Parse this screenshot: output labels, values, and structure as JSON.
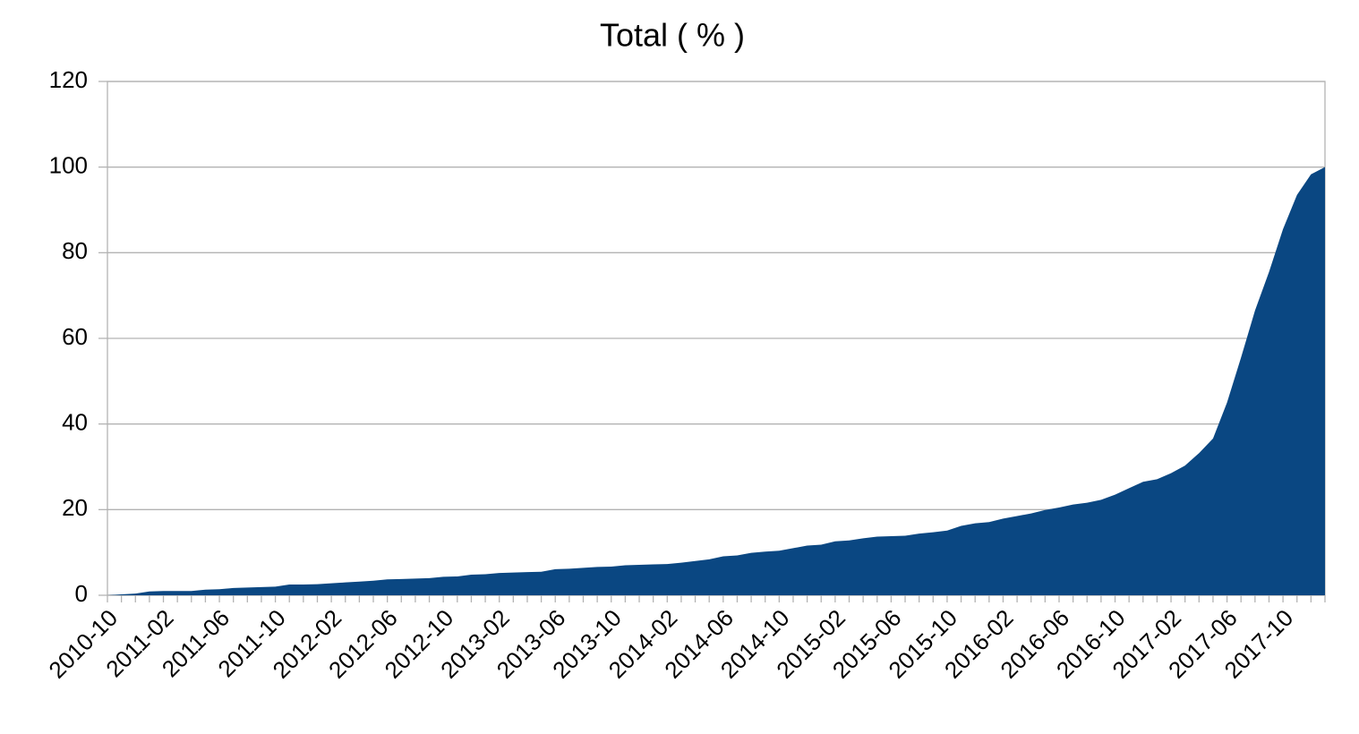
{
  "chart_data": {
    "type": "area",
    "title": "Total ( % )",
    "categories": [
      "2010-10",
      null,
      null,
      null,
      "2011-02",
      null,
      null,
      null,
      "2011-06",
      null,
      null,
      null,
      "2011-10",
      null,
      null,
      null,
      "2012-02",
      null,
      null,
      null,
      "2012-06",
      null,
      null,
      null,
      "2012-10",
      null,
      null,
      null,
      "2013-02",
      null,
      null,
      null,
      "2013-06",
      null,
      null,
      null,
      "2013-10",
      null,
      null,
      null,
      "2014-02",
      null,
      null,
      null,
      "2014-06",
      null,
      null,
      null,
      "2014-10",
      null,
      null,
      null,
      "2015-02",
      null,
      null,
      null,
      "2015-06",
      null,
      null,
      null,
      "2015-10",
      null,
      null,
      null,
      "2016-02",
      null,
      null,
      null,
      "2016-06",
      null,
      null,
      null,
      "2016-10",
      null,
      null,
      null,
      "2017-02",
      null,
      null,
      null,
      "2017-06",
      null,
      null,
      null,
      "2017-10",
      null,
      null,
      null
    ],
    "values": [
      0,
      0.2,
      0.4,
      0.9,
      1.0,
      1.0,
      1.0,
      1.3,
      1.4,
      1.7,
      1.8,
      1.9,
      2.0,
      2.5,
      2.5,
      2.6,
      2.8,
      3.0,
      3.2,
      3.4,
      3.7,
      3.8,
      3.9,
      4.0,
      4.3,
      4.4,
      4.8,
      4.9,
      5.2,
      5.3,
      5.4,
      5.5,
      6.1,
      6.2,
      6.4,
      6.6,
      6.7,
      7.0,
      7.1,
      7.2,
      7.3,
      7.6,
      8.0,
      8.4,
      9.1,
      9.3,
      9.9,
      10.2,
      10.4,
      11.0,
      11.6,
      11.8,
      12.6,
      12.8,
      13.3,
      13.7,
      13.8,
      13.9,
      14.4,
      14.7,
      15.1,
      16.2,
      16.8,
      17.1,
      17.9,
      18.5,
      19.1,
      19.9,
      20.5,
      21.2,
      21.6,
      22.3,
      23.5,
      25,
      26.5,
      27.1,
      28.5,
      30.3,
      33.2,
      36.6,
      45,
      55.5,
      66.5,
      75.5,
      85.5,
      93.5,
      98.3,
      100
    ],
    "color": "#0a4782",
    "ylim": [
      0,
      120
    ],
    "yticks": [
      0,
      20,
      40,
      60,
      80,
      100,
      120
    ],
    "grid": true
  }
}
